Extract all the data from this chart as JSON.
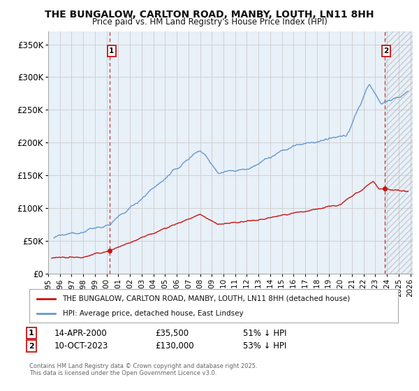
{
  "title": "THE BUNGALOW, CARLTON ROAD, MANBY, LOUTH, LN11 8HH",
  "subtitle": "Price paid vs. HM Land Registry's House Price Index (HPI)",
  "ytick_labels": [
    "£0",
    "£50K",
    "£100K",
    "£150K",
    "£200K",
    "£250K",
    "£300K",
    "£350K"
  ],
  "yticks": [
    0,
    50000,
    100000,
    150000,
    200000,
    250000,
    300000,
    350000
  ],
  "xlim_start": 1995.2,
  "xlim_end": 2026.2,
  "ylim": [
    0,
    370000
  ],
  "red_color": "#cc1111",
  "blue_color": "#6699cc",
  "bg_fill": "#e8f0f8",
  "marker1_x": 2000.28,
  "marker1_y": 35500,
  "marker2_x": 2023.78,
  "marker2_y": 130000,
  "marker1_label": "1",
  "marker2_label": "2",
  "legend_line1": "THE BUNGALOW, CARLTON ROAD, MANBY, LOUTH, LN11 8HH (detached house)",
  "legend_line2": "HPI: Average price, detached house, East Lindsey",
  "annotation1_date": "14-APR-2000",
  "annotation1_price": "£35,500",
  "annotation1_hpi": "51% ↓ HPI",
  "annotation2_date": "10-OCT-2023",
  "annotation2_price": "£130,000",
  "annotation2_hpi": "53% ↓ HPI",
  "footer": "Contains HM Land Registry data © Crown copyright and database right 2025.\nThis data is licensed under the Open Government Licence v3.0.",
  "background_color": "#ffffff",
  "grid_color": "#cccccc"
}
